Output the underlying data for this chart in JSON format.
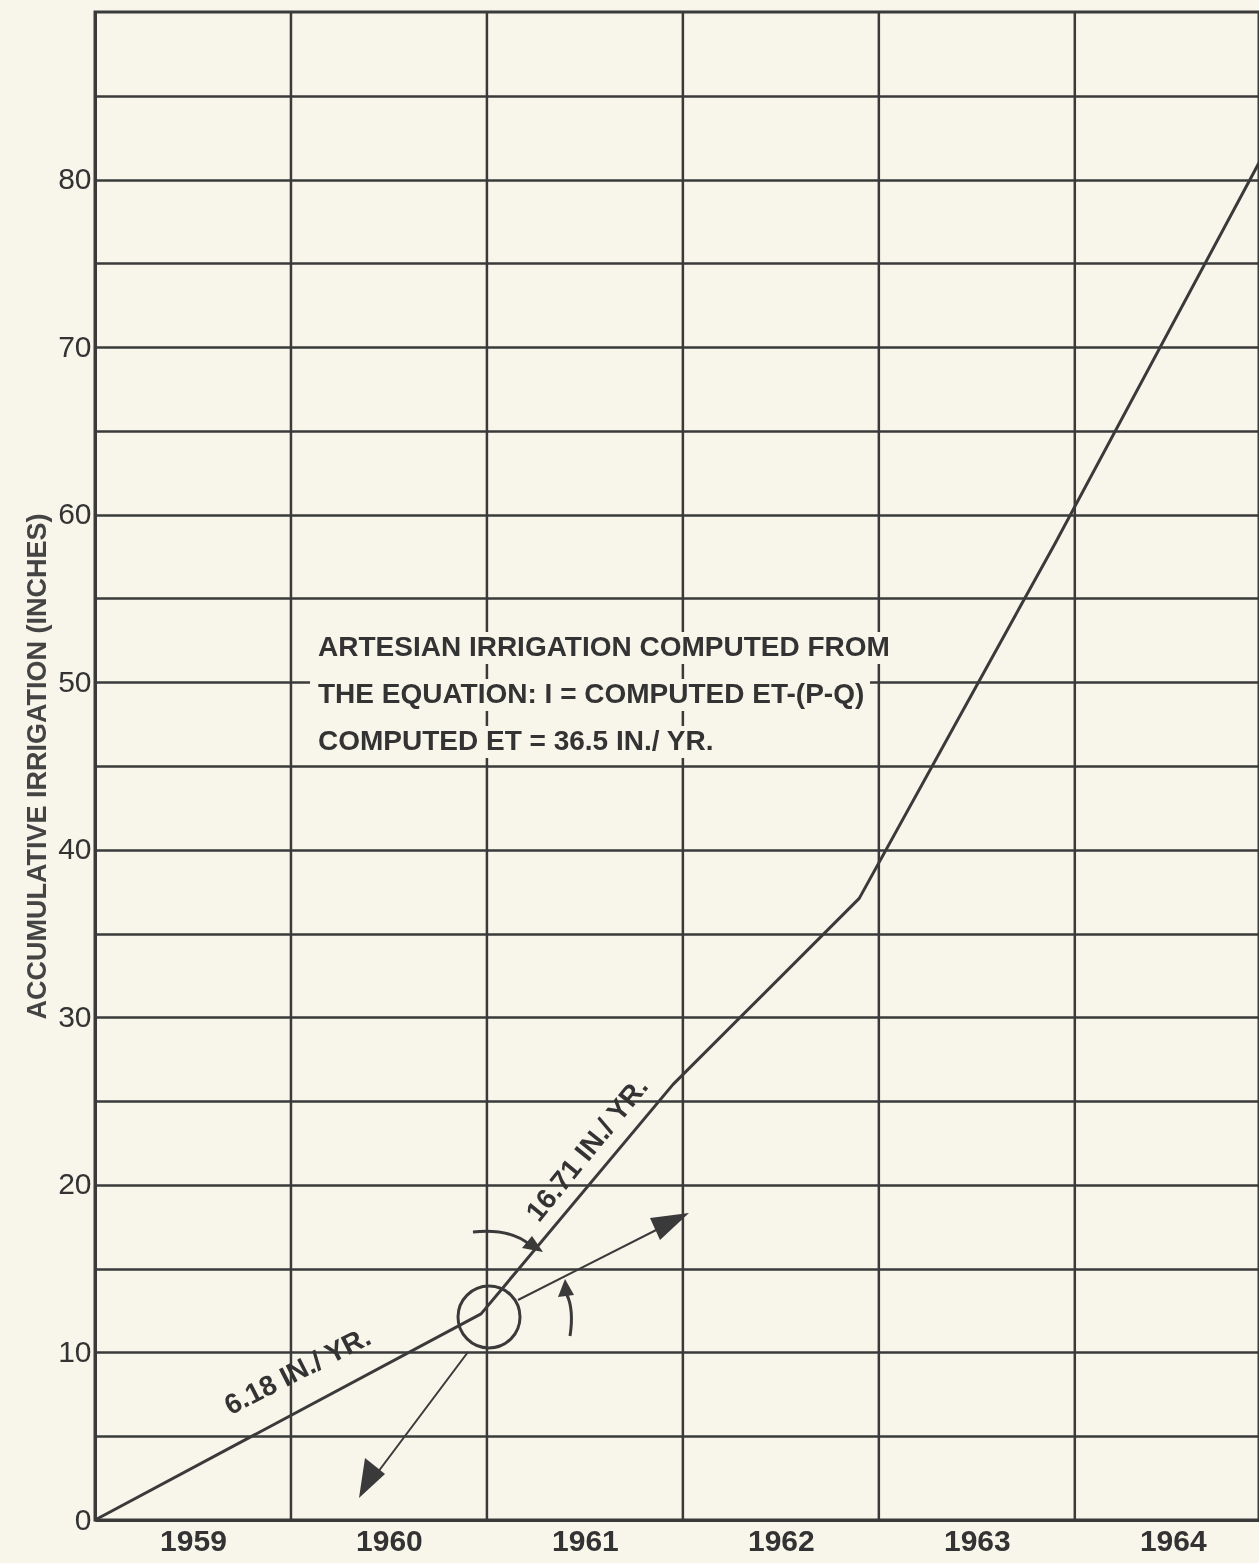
{
  "chart_data": {
    "type": "line",
    "ylabel": "ACCUMULATIVE IRRIGATION (INCHES)",
    "x": [
      1959,
      1960.97,
      1961.95,
      1962.9,
      1963.9,
      1964.94
    ],
    "series": [
      {
        "color": "#3a3a3a",
        "values": [
          0,
          12.3,
          26.0,
          37.1,
          58.3,
          81.0
        ]
      }
    ],
    "xlim": [
      1959,
      1964.94
    ],
    "xticks": [
      {
        "value": 1959.5,
        "label": "1959"
      },
      {
        "value": 1960,
        "label": null
      },
      {
        "value": 1960.5,
        "label": "1960"
      },
      {
        "value": 1961,
        "label": null
      },
      {
        "value": 1961.5,
        "label": "1961"
      },
      {
        "value": 1962,
        "label": null
      },
      {
        "value": 1962.5,
        "label": "1962"
      },
      {
        "value": 1963,
        "label": null
      },
      {
        "value": 1963.5,
        "label": "1963"
      },
      {
        "value": 1964,
        "label": null
      },
      {
        "value": 1964.5,
        "label": "1964"
      }
    ],
    "ylim": [
      0,
      90
    ],
    "yticks": [
      0,
      {
        "value": 5,
        "label": null
      },
      10,
      {
        "value": 15,
        "label": null
      },
      20,
      {
        "value": 25,
        "label": null
      },
      30,
      {
        "value": 35,
        "label": null
      },
      40,
      {
        "value": 45,
        "label": null
      },
      50,
      {
        "value": 55,
        "label": null
      },
      60,
      {
        "value": 65,
        "label": null
      },
      70,
      {
        "value": 75,
        "label": null
      },
      80,
      {
        "value": 85,
        "label": null
      }
    ],
    "grid": true,
    "marker": "none",
    "line_style": "solid",
    "annotations": [
      "ARTESIAN IRRIGATION COMPUTED FROM",
      "THE EQUATION:  I = COMPUTED ET-(P-Q)",
      "COMPUTED ET = 36.5 IN./ YR.",
      "6.18 IN./ YR.",
      "16.71 IN./ YR."
    ]
  }
}
